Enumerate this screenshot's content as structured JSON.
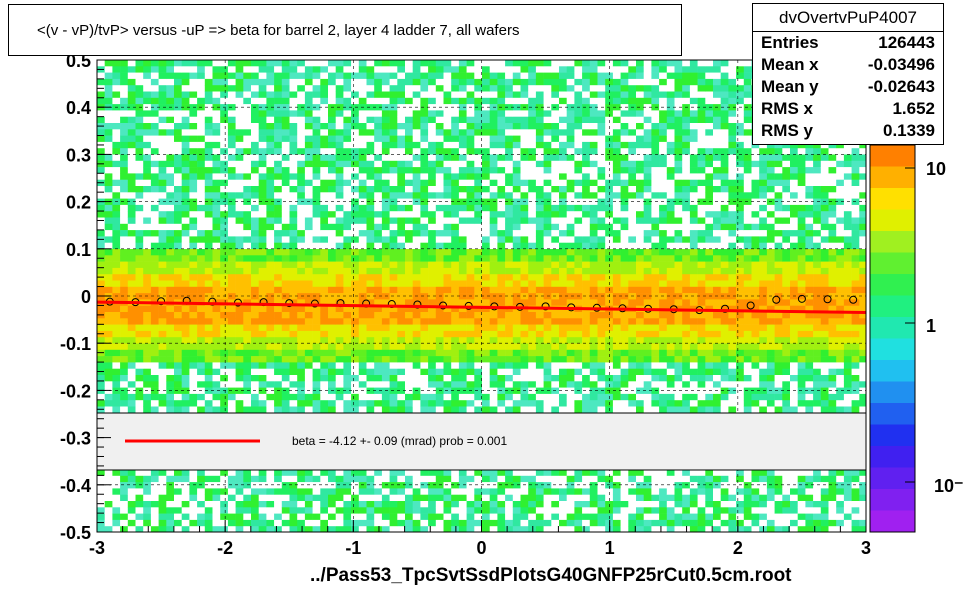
{
  "title": "<(v - vP)/tvP> versus  -uP => beta for barrel 2, layer 4 ladder 7, all wafers",
  "stats": {
    "name": "dvOvertvPuP4007",
    "rows": [
      {
        "key": "Entries",
        "value": "126443"
      },
      {
        "key": "Mean x",
        "value": "-0.03496"
      },
      {
        "key": "Mean y",
        "value": "-0.02643"
      },
      {
        "key": "RMS x",
        "value": "1.652"
      },
      {
        "key": "RMS y",
        "value": "0.1339"
      }
    ]
  },
  "footer_file": "../Pass53_TpcSvtSsdPlotsG40GNFP25rCut0.5cm.root",
  "legend": {
    "text": "beta =   -4.12 +-  0.09 (mrad) prob = 0.001",
    "line_color": "#ff0000"
  },
  "colorbar_labels": [
    "10",
    "1",
    "10⁻¹"
  ],
  "chart_data": {
    "type": "heatmap",
    "xlim": [
      -3,
      3
    ],
    "ylim": [
      -0.5,
      0.5
    ],
    "x_ticks": [
      "-3",
      "-2",
      "-1",
      "0",
      "1",
      "2",
      "3"
    ],
    "y_ticks": [
      "-0.5",
      "-0.4",
      "-0.3",
      "-0.2",
      "-0.1",
      "0",
      "0.1",
      "0.2",
      "0.3",
      "0.4",
      "0.5"
    ],
    "grid": true,
    "log_z": true,
    "profile_points": {
      "x": [
        -2.9,
        -2.7,
        -2.5,
        -2.3,
        -2.1,
        -1.9,
        -1.7,
        -1.5,
        -1.3,
        -1.1,
        -0.9,
        -0.7,
        -0.5,
        -0.3,
        -0.1,
        0.1,
        0.3,
        0.5,
        0.7,
        0.9,
        1.1,
        1.3,
        1.5,
        1.7,
        1.9,
        2.1,
        2.3,
        2.5,
        2.7,
        2.9
      ],
      "y": [
        -0.012,
        -0.013,
        -0.011,
        -0.01,
        -0.012,
        -0.014,
        -0.013,
        -0.015,
        -0.016,
        -0.015,
        -0.016,
        -0.017,
        -0.018,
        -0.02,
        -0.021,
        -0.022,
        -0.023,
        -0.022,
        -0.024,
        -0.025,
        -0.026,
        -0.027,
        -0.028,
        -0.03,
        -0.027,
        -0.02,
        -0.008,
        -0.006,
        -0.007,
        -0.008
      ]
    },
    "fit_line": {
      "x": [
        -3,
        3
      ],
      "y": [
        -0.013,
        -0.035
      ],
      "color": "#ff0000"
    }
  }
}
